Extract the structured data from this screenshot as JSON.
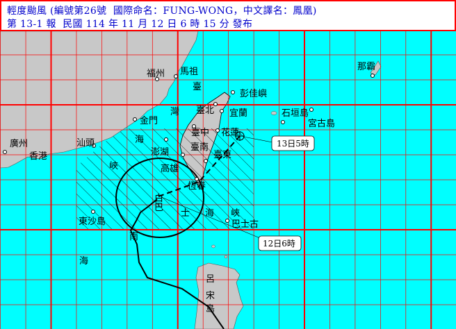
{
  "header": {
    "line1": "輕度颱風 (編號第26號  國際命名：FUNG-WONG，中文譯名：鳳凰)",
    "line2": "第 13-1 報  民國 114 年 11 月 12 日 6 時 15 分 發布"
  },
  "colors": {
    "sea": "#00ffff",
    "land": "#c8c8c8",
    "grid": "#ff0000",
    "header_text": "#0000cc"
  },
  "places": {
    "fuzhou": "福州",
    "matsu": "馬祖",
    "pengjia": "彭佳嶼",
    "taipei": "臺北",
    "yilan": "宜蘭",
    "kinmen": "金門",
    "ishigaki": "石垣島",
    "miyako": "宮古島",
    "naha": "那霸",
    "guangzhou": "廣州",
    "hongkong": "香港",
    "shantou": "汕頭",
    "taichung": "臺中",
    "hualien": "花蓮",
    "penghu": "澎湖",
    "tainan": "臺南",
    "taitung": "臺東",
    "kaohsiung": "高雄",
    "hengchun": "恆春",
    "dongsha": "東沙島",
    "basco": "巴士古",
    "luzon": [
      "呂",
      "宋",
      "島"
    ]
  },
  "sea_labels": {
    "taiwan_strait": [
      "臺",
      "灣",
      "海",
      "峽"
    ],
    "bashi_channel": [
      "巴",
      "士",
      "海",
      "峽"
    ],
    "south_sea": [
      "南",
      "海"
    ]
  },
  "callouts": {
    "forecast": "13日5時",
    "current": "12日6時"
  },
  "icons": {
    "typhoon_center": "typhoon-symbol",
    "forecast_point": "circle-cross"
  }
}
